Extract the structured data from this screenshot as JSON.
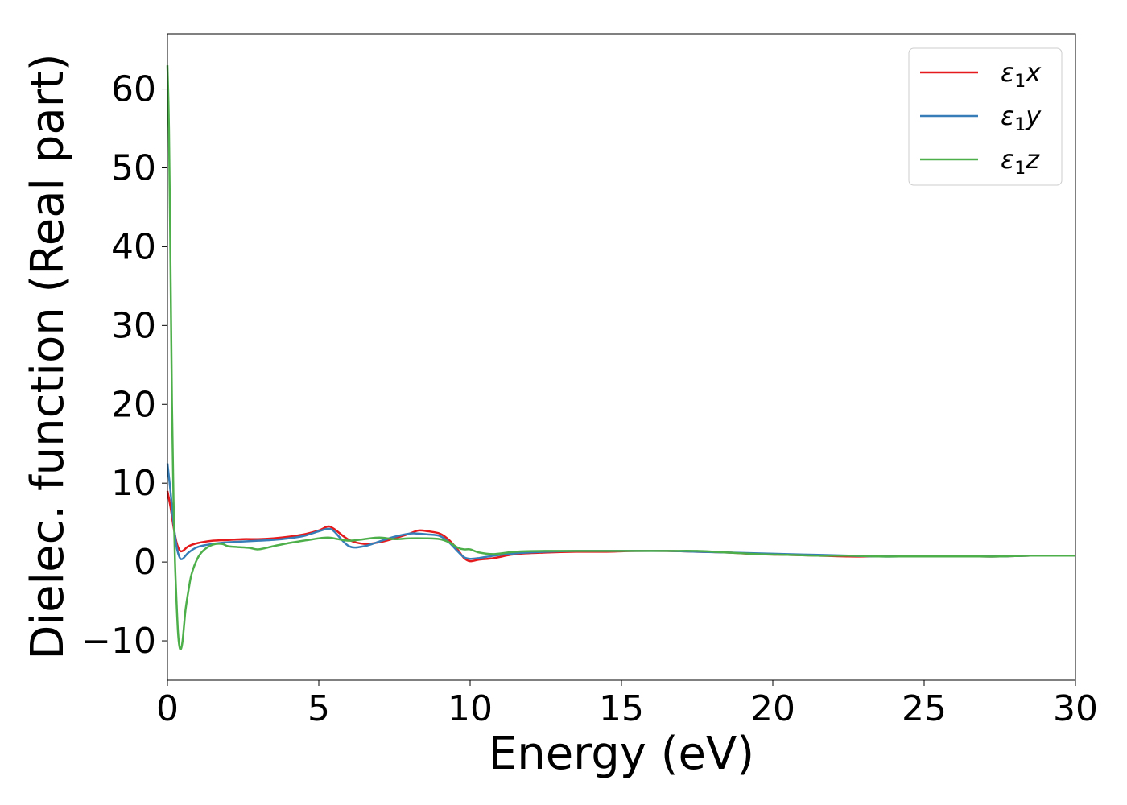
{
  "chart_data": {
    "type": "line",
    "xlabel": "Energy (eV)",
    "ylabel": "Dielec. function (Real part)",
    "xlim": [
      0,
      30
    ],
    "ylim": [
      -15,
      67
    ],
    "xticks": [
      0,
      5,
      10,
      15,
      20,
      25,
      30
    ],
    "yticks": [
      -10,
      0,
      10,
      20,
      30,
      40,
      50,
      60
    ],
    "xtick_labels": [
      "0",
      "5",
      "10",
      "15",
      "20",
      "25",
      "30"
    ],
    "ytick_labels": [
      "−10",
      "0",
      "10",
      "20",
      "30",
      "40",
      "50",
      "60"
    ],
    "grid": false,
    "legend_position": "top-right",
    "series": [
      {
        "name": "ε₁x",
        "legend_main": "ε",
        "legend_sub": "1",
        "legend_suffix": "x",
        "color": "#e41a1c",
        "x": [
          0,
          0.1,
          0.2,
          0.3,
          0.4,
          0.5,
          0.7,
          1.0,
          1.5,
          2.0,
          2.5,
          3.0,
          3.5,
          4.0,
          4.5,
          5.0,
          5.3,
          5.5,
          6.0,
          6.5,
          7.0,
          7.5,
          8.0,
          8.3,
          8.6,
          9.0,
          9.3,
          9.6,
          9.8,
          10.0,
          10.3,
          10.8,
          11.5,
          12.5,
          13.5,
          14.5,
          15.5,
          16.5,
          17.5,
          18.5,
          19.5,
          20.5,
          21.5,
          22.5,
          23.5,
          24.5,
          25.5,
          26.5,
          27.5,
          28.5,
          29.5,
          30
        ],
        "y": [
          9.0,
          7.0,
          4.5,
          2.5,
          1.5,
          1.4,
          2.0,
          2.4,
          2.7,
          2.8,
          2.9,
          2.9,
          3.0,
          3.2,
          3.5,
          4.0,
          4.5,
          4.2,
          2.8,
          2.3,
          2.5,
          3.0,
          3.6,
          4.0,
          3.9,
          3.6,
          2.8,
          1.5,
          0.5,
          0.1,
          0.3,
          0.5,
          1.0,
          1.2,
          1.3,
          1.3,
          1.4,
          1.4,
          1.3,
          1.2,
          1.0,
          0.9,
          0.8,
          0.7,
          0.7,
          0.7,
          0.7,
          0.7,
          0.7,
          0.8,
          0.8,
          0.8
        ]
      },
      {
        "name": "ε₁y",
        "legend_main": "ε",
        "legend_sub": "1",
        "legend_suffix": "y",
        "color": "#377eb8",
        "x": [
          0,
          0.1,
          0.2,
          0.3,
          0.4,
          0.5,
          0.7,
          1.0,
          1.5,
          2.0,
          2.5,
          3.0,
          3.5,
          4.0,
          4.5,
          5.0,
          5.3,
          5.5,
          6.0,
          6.5,
          7.0,
          7.5,
          8.0,
          8.3,
          8.6,
          9.0,
          9.3,
          9.6,
          9.8,
          10.0,
          10.3,
          10.8,
          11.5,
          12.5,
          13.5,
          14.5,
          15.5,
          16.5,
          17.5,
          18.5,
          19.5,
          20.5,
          21.5,
          22.5,
          23.5,
          24.5,
          25.5,
          26.5,
          27.5,
          28.5,
          29.5,
          30
        ],
        "y": [
          12.5,
          9.0,
          5.0,
          2.0,
          0.6,
          0.4,
          1.2,
          1.9,
          2.3,
          2.5,
          2.6,
          2.7,
          2.8,
          3.0,
          3.3,
          3.9,
          4.2,
          3.9,
          2.0,
          2.0,
          2.6,
          3.2,
          3.6,
          3.6,
          3.5,
          3.3,
          2.5,
          1.3,
          0.6,
          0.4,
          0.5,
          0.8,
          1.1,
          1.3,
          1.4,
          1.4,
          1.4,
          1.4,
          1.3,
          1.2,
          1.1,
          1.0,
          0.9,
          0.8,
          0.7,
          0.7,
          0.7,
          0.7,
          0.7,
          0.8,
          0.8,
          0.8
        ]
      },
      {
        "name": "ε₁z",
        "legend_main": "ε",
        "legend_sub": "1",
        "legend_suffix": "z",
        "color": "#4daf4a",
        "x": [
          0,
          0.05,
          0.1,
          0.15,
          0.2,
          0.25,
          0.3,
          0.35,
          0.4,
          0.45,
          0.5,
          0.55,
          0.6,
          0.7,
          0.8,
          1.0,
          1.2,
          1.5,
          1.8,
          2.0,
          2.3,
          2.7,
          3.0,
          3.5,
          4.0,
          4.5,
          5.0,
          5.3,
          5.5,
          6.0,
          6.5,
          7.0,
          7.5,
          8.0,
          8.5,
          9.0,
          9.3,
          9.6,
          9.8,
          10.0,
          10.3,
          10.8,
          11.5,
          12.5,
          13.5,
          14.5,
          15.5,
          16.5,
          17.5,
          18.5,
          19.5,
          20.5,
          21.5,
          22.5,
          23.5,
          24.5,
          25.5,
          26.5,
          27.5,
          28.5,
          29.5,
          30
        ],
        "y": [
          63.0,
          55.0,
          38.0,
          20.0,
          8.0,
          0.0,
          -5.0,
          -9.0,
          -10.8,
          -11.0,
          -10.0,
          -8.0,
          -6.0,
          -3.5,
          -1.5,
          0.5,
          1.5,
          2.2,
          2.3,
          2.0,
          1.9,
          1.8,
          1.6,
          2.0,
          2.4,
          2.7,
          3.0,
          3.1,
          3.0,
          2.7,
          2.9,
          3.1,
          2.9,
          3.0,
          3.0,
          2.9,
          2.5,
          1.8,
          1.6,
          1.6,
          1.2,
          1.0,
          1.3,
          1.4,
          1.4,
          1.4,
          1.4,
          1.4,
          1.4,
          1.2,
          1.0,
          0.9,
          0.8,
          0.8,
          0.7,
          0.7,
          0.7,
          0.7,
          0.7,
          0.8,
          0.8,
          0.8
        ]
      }
    ]
  }
}
